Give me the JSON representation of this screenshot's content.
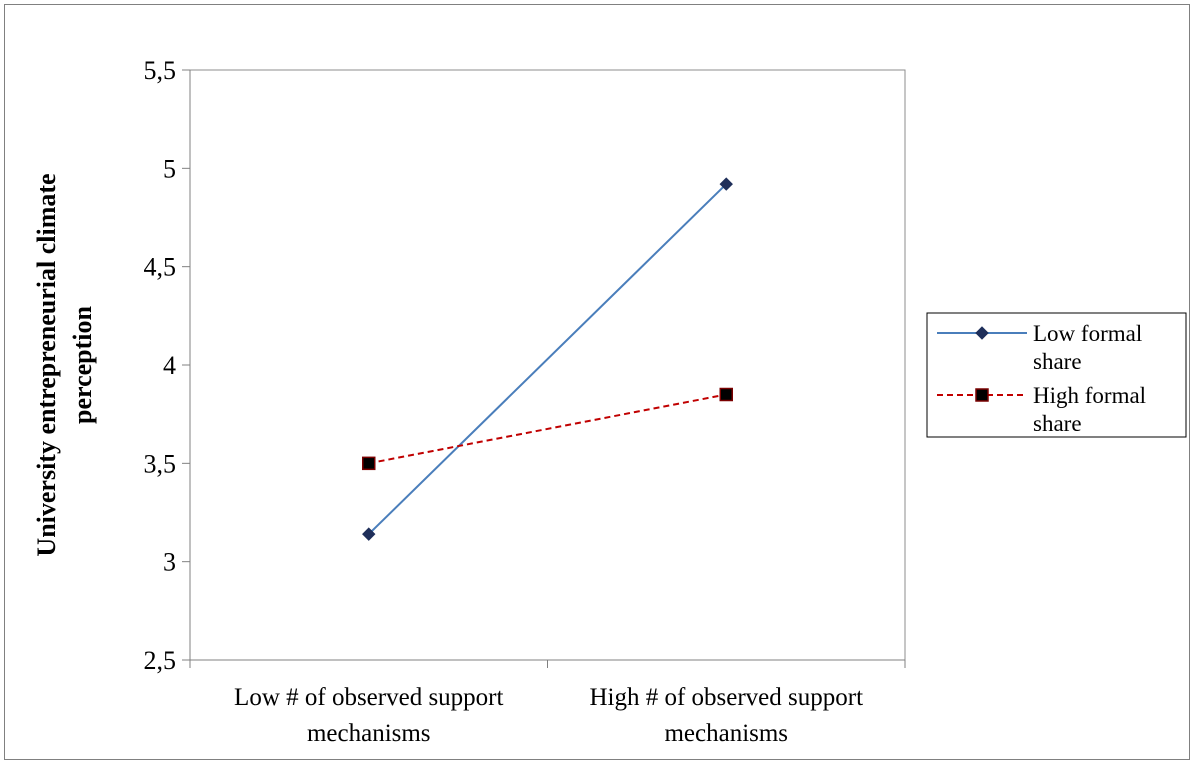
{
  "chart_data": {
    "type": "line",
    "title": "",
    "categories": [
      [
        "Low # of observed support",
        "mechanisms"
      ],
      [
        "High # of observed support",
        "mechanisms"
      ]
    ],
    "ylabel": [
      "University entrepreneurial climate",
      "perception"
    ],
    "xlabel": "",
    "ylim": [
      2.5,
      5.5
    ],
    "yticks": [
      "2,5",
      "3",
      "3,5",
      "4",
      "4,5",
      "5",
      "5,5"
    ],
    "grid": false,
    "legend_position": "right",
    "series": [
      {
        "name": [
          "Low formal",
          "share"
        ],
        "values": [
          3.14,
          4.92
        ],
        "color": "#4a7ebb",
        "line_style": "solid",
        "marker": "diamond",
        "marker_color": "#1f2f5a"
      },
      {
        "name": [
          "High formal",
          "share"
        ],
        "values": [
          3.5,
          3.85
        ],
        "color": "#c00000",
        "line_style": "dashed",
        "marker": "square",
        "marker_color": "#000000"
      }
    ]
  }
}
